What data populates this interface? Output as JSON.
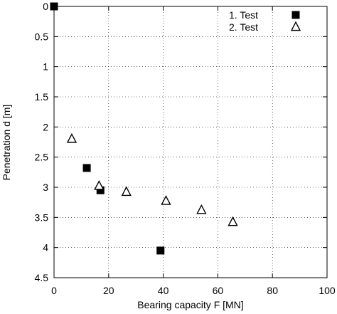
{
  "chart_data": {
    "type": "scatter",
    "title": "",
    "xlabel": "Bearing capacity F [MN]",
    "ylabel": "Penetration d [m]",
    "xlim": [
      0,
      100
    ],
    "ylim": [
      4.5,
      0
    ],
    "y_inverted": true,
    "grid": true,
    "legend_position": "top-right",
    "x_ticks": [
      "0",
      "20",
      "40",
      "60",
      "80",
      "100"
    ],
    "y_ticks": [
      "0",
      "0.5",
      "1",
      "1.5",
      "2",
      "2.5",
      "3",
      "3.5",
      "4",
      "4.5"
    ],
    "series": [
      {
        "name": "1. Test",
        "marker": "filled-square",
        "points": [
          {
            "x": 0,
            "y": 0
          },
          {
            "x": 12,
            "y": 2.68
          },
          {
            "x": 17,
            "y": 3.05
          },
          {
            "x": 39,
            "y": 4.05
          }
        ]
      },
      {
        "name": "2. Test",
        "marker": "open-triangle",
        "points": [
          {
            "x": 6.5,
            "y": 2.2
          },
          {
            "x": 16.5,
            "y": 2.98
          },
          {
            "x": 26.5,
            "y": 3.08
          },
          {
            "x": 41,
            "y": 3.23
          },
          {
            "x": 54,
            "y": 3.38
          },
          {
            "x": 65.5,
            "y": 3.58
          }
        ]
      }
    ]
  }
}
